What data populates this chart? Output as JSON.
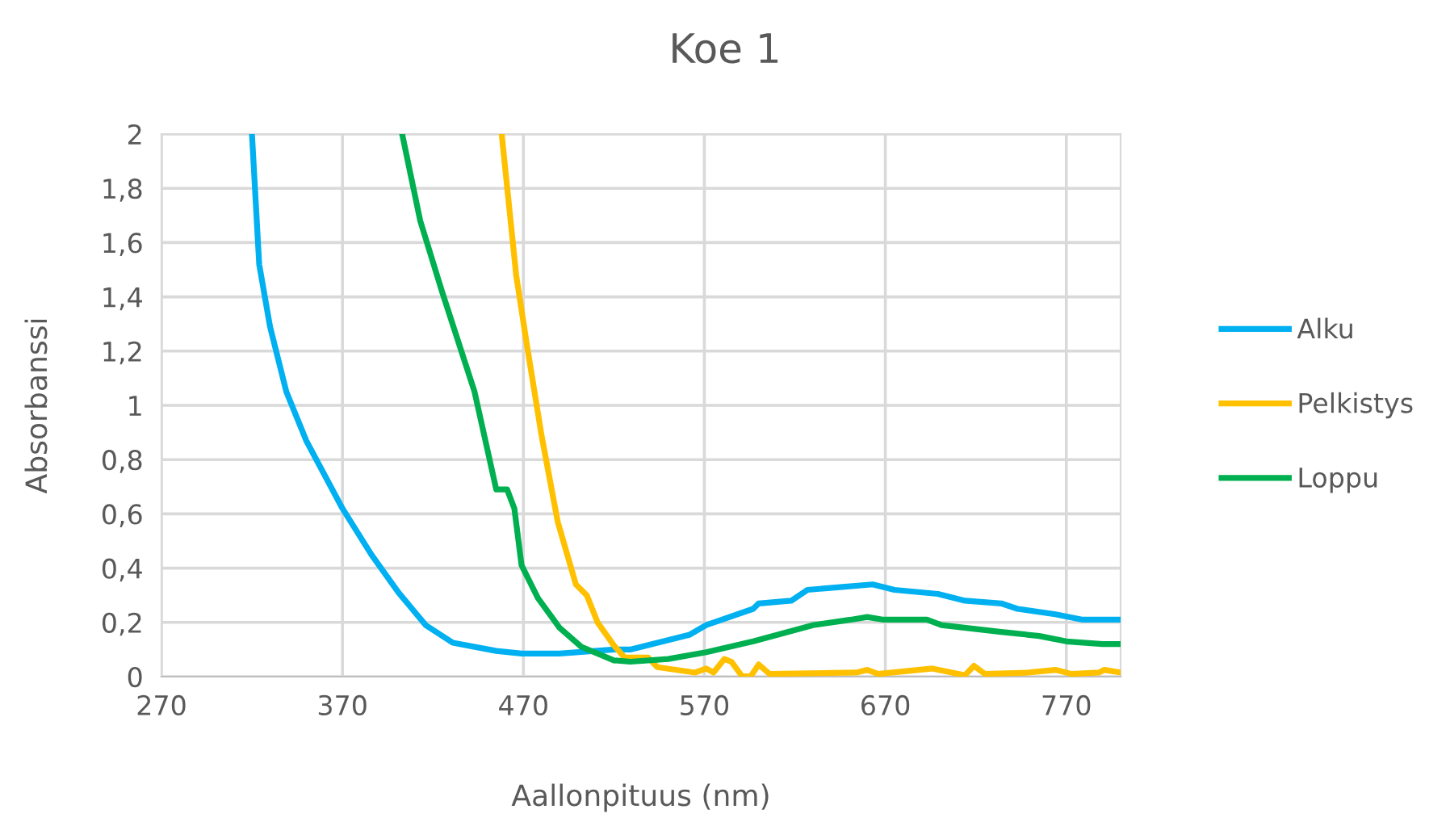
{
  "chart_data": {
    "type": "line",
    "title": "Koe 1",
    "xlabel": "Aallonpituus (nm)",
    "ylabel": "Absorbanssi",
    "xlim": [
      270,
      800
    ],
    "xticks": [
      270,
      370,
      470,
      570,
      670,
      770
    ],
    "ylim": [
      0,
      2
    ],
    "yticks": [
      0,
      {
        "value": 0.2,
        "label": "0,2"
      },
      {
        "value": 0.4,
        "label": "0,4"
      },
      {
        "value": 0.6,
        "label": "0,6"
      },
      {
        "value": 0.8,
        "label": "0,8"
      },
      1,
      {
        "value": 1.2,
        "label": "1,2"
      },
      {
        "value": 1.4,
        "label": "1,4"
      },
      {
        "value": 1.6,
        "label": "1,6"
      },
      {
        "value": 1.8,
        "label": "1,8"
      },
      2
    ],
    "grid": true,
    "legend": "right",
    "marker": "none",
    "line_style": "solid",
    "series": [
      {
        "name": "Alku",
        "color": "#00b0f0",
        "x": [
          320,
          324,
          330,
          339,
          350,
          370,
          386,
          401,
          416,
          431,
          455,
          469,
          490,
          520,
          529,
          562,
          571,
          597,
          600,
          618,
          627,
          645,
          663,
          675,
          699,
          714,
          734,
          743,
          764,
          779,
          800
        ],
        "values": [
          2.0,
          1.52,
          1.29,
          1.05,
          0.87,
          0.62,
          0.45,
          0.31,
          0.19,
          0.125,
          0.095,
          0.085,
          0.085,
          0.1,
          0.1,
          0.155,
          0.19,
          0.25,
          0.27,
          0.28,
          0.32,
          0.33,
          0.34,
          0.32,
          0.305,
          0.28,
          0.27,
          0.25,
          0.23,
          0.21,
          0.21
        ]
      },
      {
        "name": "Pelkistys",
        "color": "#ffc000",
        "x": [
          458,
          466,
          472,
          480,
          489,
          499,
          505,
          511,
          520,
          526,
          539,
          544,
          565,
          571,
          575,
          581,
          585,
          591,
          596,
          600,
          606,
          654,
          660,
          666,
          696,
          714,
          719,
          725,
          749,
          764,
          773,
          788,
          791,
          800
        ],
        "values": [
          2.0,
          1.48,
          1.22,
          0.89,
          0.57,
          0.34,
          0.3,
          0.2,
          0.115,
          0.07,
          0.07,
          0.035,
          0.015,
          0.03,
          0.015,
          0.065,
          0.055,
          0.0,
          0.005,
          0.045,
          0.01,
          0.015,
          0.025,
          0.01,
          0.03,
          0.005,
          0.04,
          0.01,
          0.015,
          0.025,
          0.01,
          0.015,
          0.025,
          0.015
        ]
      },
      {
        "name": "Loppu",
        "color": "#00b050",
        "x": [
          403,
          413,
          425,
          443,
          455,
          461,
          465,
          469,
          478,
          490,
          502,
          520,
          529,
          550,
          571,
          597,
          630,
          651,
          660,
          669,
          693,
          701,
          734,
          755,
          770,
          790,
          800
        ],
        "values": [
          2.0,
          1.68,
          1.42,
          1.05,
          0.69,
          0.69,
          0.62,
          0.41,
          0.29,
          0.18,
          0.11,
          0.06,
          0.055,
          0.065,
          0.09,
          0.13,
          0.19,
          0.21,
          0.22,
          0.21,
          0.21,
          0.19,
          0.165,
          0.15,
          0.13,
          0.12,
          0.12
        ]
      }
    ]
  }
}
